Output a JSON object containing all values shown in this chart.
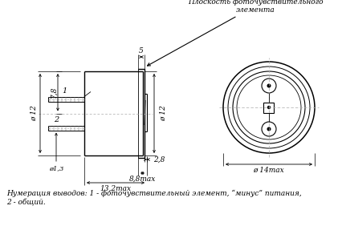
{
  "bg_color": "#ffffff",
  "line_color": "#000000",
  "annotation_text": "Плоскость фоточувствительного\nэлемента",
  "footer_text": "Нумерация выводов: 1 - фоточувствительный элемент, “минус” питания,\n2 - общий.",
  "dim_5": "5",
  "dim_12_left": "ø 12",
  "dim_78": "7,8",
  "dim_12_right": "ø 12",
  "dim_13": "ø1,3",
  "dim_28": "2,8",
  "dim_88": "8,8max",
  "dim_132": "13,2max",
  "dim_14": "ø 14max",
  "label_1": "1",
  "label_2": "2"
}
